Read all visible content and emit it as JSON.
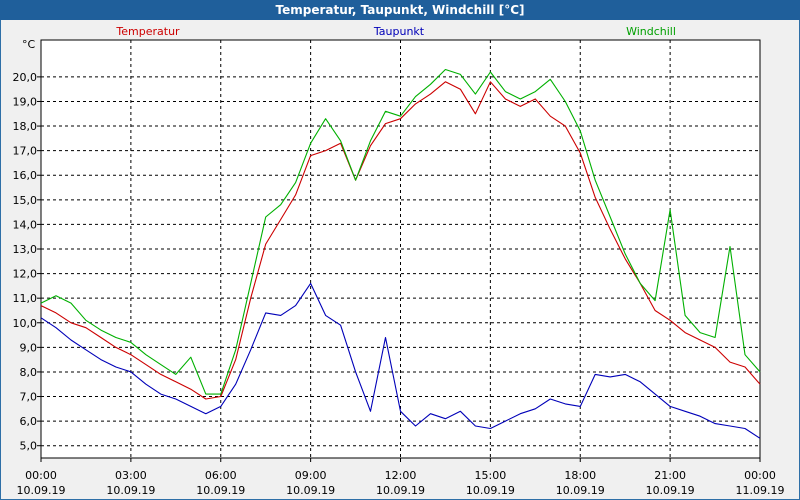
{
  "window": {
    "title": "Temperatur, Taupunkt, Windchill [°C]"
  },
  "chart_data": {
    "type": "line",
    "unit_label": "°C",
    "ylim": [
      4.5,
      21.5
    ],
    "xlim_hours": [
      0,
      24
    ],
    "grid": true,
    "y_ticks": [
      "5,0",
      "6,0",
      "7,0",
      "8,0",
      "9,0",
      "10,0",
      "11,0",
      "12,0",
      "13,0",
      "14,0",
      "15,0",
      "16,0",
      "17,0",
      "18,0",
      "19,0",
      "20,0"
    ],
    "x_ticks": [
      {
        "time": "00:00",
        "date": "10.09.19"
      },
      {
        "time": "03:00",
        "date": "10.09.19"
      },
      {
        "time": "06:00",
        "date": "10.09.19"
      },
      {
        "time": "09:00",
        "date": "10.09.19"
      },
      {
        "time": "12:00",
        "date": "10.09.19"
      },
      {
        "time": "15:00",
        "date": "10.09.19"
      },
      {
        "time": "18:00",
        "date": "10.09.19"
      },
      {
        "time": "21:00",
        "date": "10.09.19"
      },
      {
        "time": "00:00",
        "date": "11.09.19"
      }
    ],
    "series": [
      {
        "name": "Temperatur",
        "color": "#cc0000",
        "x": [
          0,
          0.5,
          1,
          1.5,
          2,
          2.5,
          3,
          3.5,
          4,
          4.5,
          5,
          5.5,
          6,
          6.5,
          7,
          7.5,
          8,
          8.5,
          9,
          9.5,
          10,
          10.5,
          11,
          11.5,
          12,
          12.5,
          13,
          13.5,
          14,
          14.5,
          15,
          15.5,
          16,
          16.5,
          17,
          17.5,
          18,
          18.5,
          19,
          19.5,
          20,
          20.5,
          21,
          21.5,
          22,
          22.5,
          23,
          23.5,
          24
        ],
        "values": [
          10.7,
          10.4,
          10.0,
          9.8,
          9.4,
          9.0,
          8.7,
          8.3,
          7.9,
          7.6,
          7.3,
          6.9,
          7.0,
          8.5,
          11.0,
          13.2,
          14.2,
          15.2,
          16.8,
          17.0,
          17.3,
          15.8,
          17.2,
          18.1,
          18.3,
          18.9,
          19.3,
          19.8,
          19.5,
          18.5,
          19.8,
          19.1,
          18.8,
          19.1,
          18.4,
          18.0,
          16.9,
          15.1,
          13.8,
          12.6,
          11.6,
          10.5,
          10.1,
          9.6,
          9.3,
          9.0,
          8.4,
          8.2,
          7.5
        ]
      },
      {
        "name": "Taupunkt",
        "color": "#0000b8",
        "x": [
          0,
          0.5,
          1,
          1.5,
          2,
          2.5,
          3,
          3.5,
          4,
          4.5,
          5,
          5.5,
          6,
          6.5,
          7,
          7.5,
          8,
          8.5,
          9,
          9.5,
          10,
          10.5,
          11,
          11.5,
          12,
          12.5,
          13,
          13.5,
          14,
          14.5,
          15,
          15.5,
          16,
          16.5,
          17,
          17.5,
          18,
          18.5,
          19,
          19.5,
          20,
          20.5,
          21,
          21.5,
          22,
          22.5,
          23,
          23.5,
          24
        ],
        "values": [
          10.2,
          9.8,
          9.3,
          8.9,
          8.5,
          8.2,
          8.0,
          7.5,
          7.1,
          6.9,
          6.6,
          6.3,
          6.6,
          7.5,
          8.9,
          10.4,
          10.3,
          10.7,
          11.6,
          10.3,
          9.9,
          8.0,
          6.4,
          9.4,
          6.4,
          5.8,
          6.3,
          6.1,
          6.4,
          5.8,
          5.7,
          6.0,
          6.3,
          6.5,
          6.9,
          6.7,
          6.6,
          7.9,
          7.8,
          7.9,
          7.6,
          7.1,
          6.6,
          6.4,
          6.2,
          5.9,
          5.8,
          5.7,
          5.3
        ]
      },
      {
        "name": "Windchill",
        "color": "#00b000",
        "x": [
          0,
          0.5,
          1,
          1.5,
          2,
          2.5,
          3,
          3.5,
          4,
          4.5,
          5,
          5.5,
          6,
          6.5,
          7,
          7.5,
          8,
          8.5,
          9,
          9.5,
          10,
          10.5,
          11,
          11.5,
          12,
          12.5,
          13,
          13.5,
          14,
          14.5,
          15,
          15.5,
          16,
          16.5,
          17,
          17.5,
          18,
          18.5,
          19,
          19.5,
          20,
          20.5,
          21,
          21.5,
          22,
          22.5,
          23,
          23.5,
          24
        ],
        "values": [
          10.8,
          11.1,
          10.8,
          10.1,
          9.7,
          9.4,
          9.2,
          8.7,
          8.3,
          7.9,
          8.6,
          7.1,
          7.1,
          8.9,
          11.6,
          14.3,
          14.8,
          15.7,
          17.3,
          18.3,
          17.4,
          15.8,
          17.4,
          18.6,
          18.4,
          19.2,
          19.7,
          20.3,
          20.1,
          19.3,
          20.2,
          19.4,
          19.1,
          19.4,
          19.9,
          19.0,
          17.8,
          15.8,
          14.3,
          12.8,
          11.6,
          10.9,
          14.6,
          10.3,
          9.6,
          9.4,
          13.1,
          8.7,
          8.0
        ]
      }
    ]
  }
}
